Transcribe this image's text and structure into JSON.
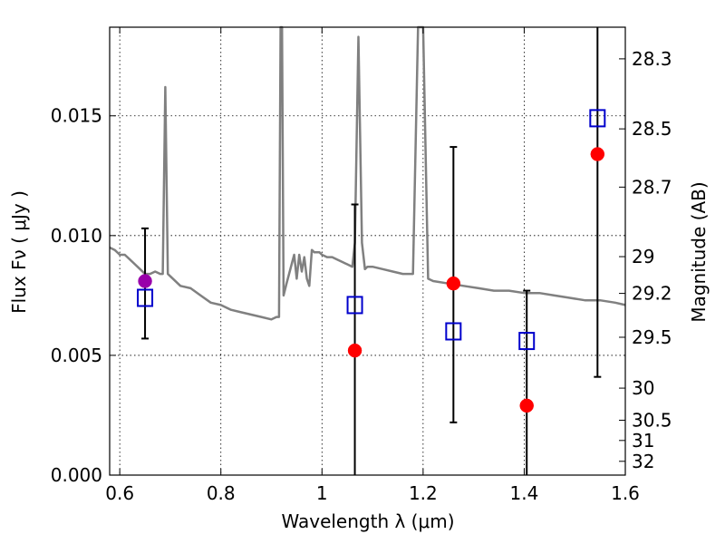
{
  "chart_data": {
    "type": "scatter",
    "xlabel": "Wavelength  λ (μm)",
    "ylabel": "Flux  Fν  ( μJy )",
    "y2label": "Magnitude (AB)",
    "xlim": [
      0.58,
      1.6
    ],
    "ylim": [
      0.0,
      0.0187
    ],
    "grid": true,
    "x_ticks": [
      0.6,
      0.8,
      1.0,
      1.2,
      1.4,
      1.6
    ],
    "x_tick_labels": [
      "0.6",
      "0.8",
      "1",
      "1.2",
      "1.4",
      "1.6"
    ],
    "y_ticks": [
      0.0,
      0.005,
      0.01,
      0.015
    ],
    "y_tick_labels": [
      "0.000",
      "0.005",
      "0.010",
      "0.015"
    ],
    "y2_ticks": [
      28.3,
      28.5,
      28.7,
      29,
      29.2,
      29.5,
      30,
      30.5,
      31,
      32
    ],
    "y2_tick_labels": [
      "28.3",
      "28.5",
      "28.7",
      "29",
      "29.2",
      "29.5",
      "30",
      "30.5",
      "31",
      "32"
    ],
    "series": [
      {
        "type": "line",
        "color": "#808080",
        "x": [
          0.58,
          0.59,
          0.6,
          0.61,
          0.62,
          0.63,
          0.64,
          0.65,
          0.66,
          0.67,
          0.68,
          0.685,
          0.69,
          0.695,
          0.7,
          0.72,
          0.74,
          0.76,
          0.78,
          0.8,
          0.82,
          0.84,
          0.86,
          0.88,
          0.9,
          0.91,
          0.915,
          0.918,
          0.921,
          0.924,
          0.93,
          0.94,
          0.945,
          0.95,
          0.955,
          0.96,
          0.965,
          0.97,
          0.975,
          0.98,
          0.985,
          0.99,
          0.995,
          1.0,
          1.01,
          1.02,
          1.03,
          1.04,
          1.05,
          1.06,
          1.065,
          1.072,
          1.079,
          1.085,
          1.09,
          1.1,
          1.12,
          1.14,
          1.16,
          1.18,
          1.19,
          1.2,
          1.21,
          1.22,
          1.25,
          1.28,
          1.31,
          1.34,
          1.37,
          1.4,
          1.43,
          1.46,
          1.49,
          1.52,
          1.55,
          1.58,
          1.6
        ],
        "y": [
          0.0095,
          0.0094,
          0.0092,
          0.0092,
          0.009,
          0.0088,
          0.0086,
          0.0084,
          0.0084,
          0.0085,
          0.0084,
          0.0084,
          0.0162,
          0.0084,
          0.0083,
          0.0079,
          0.0078,
          0.0075,
          0.0072,
          0.0071,
          0.0069,
          0.0068,
          0.0067,
          0.0066,
          0.0065,
          0.0066,
          0.0066,
          0.0195,
          0.0195,
          0.0075,
          0.008,
          0.0088,
          0.0092,
          0.0082,
          0.0092,
          0.0085,
          0.0091,
          0.0082,
          0.0079,
          0.0094,
          0.0093,
          0.0093,
          0.0093,
          0.0092,
          0.0091,
          0.0091,
          0.009,
          0.0089,
          0.0088,
          0.0087,
          0.0097,
          0.0183,
          0.0097,
          0.0086,
          0.0087,
          0.0087,
          0.0086,
          0.0085,
          0.0084,
          0.0084,
          0.0195,
          0.0195,
          0.0082,
          0.0081,
          0.008,
          0.0079,
          0.0078,
          0.0077,
          0.0077,
          0.0076,
          0.0076,
          0.0075,
          0.0074,
          0.0073,
          0.0073,
          0.0072,
          0.0071
        ]
      },
      {
        "type": "errorbar",
        "color": "#000000",
        "x": [
          0.65,
          1.065,
          1.26,
          1.405,
          1.545
        ],
        "ylow": [
          0.0057,
          0.0,
          0.0022,
          0.0,
          0.0041
        ],
        "yhigh": [
          0.0103,
          0.0113,
          0.0137,
          0.0077,
          0.0195
        ]
      },
      {
        "type": "scatter",
        "marker": "square-open",
        "color": "#0000cc",
        "x": [
          0.65,
          1.065,
          1.26,
          1.405,
          1.545
        ],
        "y": [
          0.0074,
          0.0071,
          0.006,
          0.0056,
          0.0149
        ]
      },
      {
        "type": "scatter",
        "marker": "circle",
        "color": "#ff0000",
        "x": [
          1.065,
          1.26,
          1.405,
          1.545
        ],
        "y": [
          0.0052,
          0.008,
          0.0029,
          0.0134
        ]
      },
      {
        "type": "scatter",
        "marker": "circle",
        "color": "#9900aa",
        "x": [
          0.65
        ],
        "y": [
          0.0081
        ]
      }
    ]
  }
}
